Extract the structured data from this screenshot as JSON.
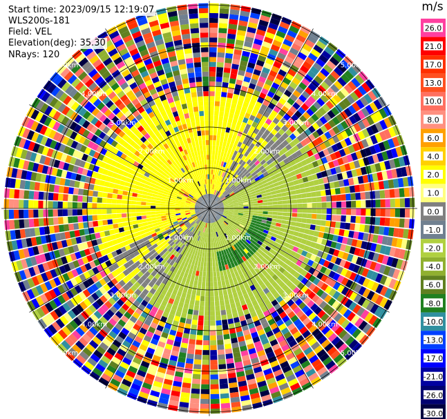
{
  "header": {
    "start_time": "Start time: 2023/09/15 12:19:07",
    "site": "WLS200s-181",
    "field": "Field: VEL",
    "elevation": "Elevation(deg): 35.30",
    "nrays": "NRays: 120"
  },
  "colorbar": {
    "unit": "m/s",
    "ticks": [
      "26.0",
      "21.0",
      "17.0",
      "13.0",
      "10.0",
      "8.0",
      "6.0",
      "4.0",
      "2.0",
      "1.0",
      "0.0",
      "-1.0",
      "-2.0",
      "-4.0",
      "-6.0",
      "-8.0",
      "-10.0",
      "-13.0",
      "-17.0",
      "-21.0",
      "-26.0",
      "-30.0"
    ],
    "colors": [
      "#ff40a0",
      "#ff0000",
      "#ff3000",
      "#ff5020",
      "#ff7060",
      "#ff9080",
      "#ffa000",
      "#ffd000",
      "#ffff00",
      "#ffff80",
      "#808080",
      "#708090",
      "#b0d040",
      "#90b030",
      "#608020",
      "#208020",
      "#3090a0",
      "#0040ff",
      "#0000ff",
      "#0000a0",
      "#000070",
      "#000040"
    ]
  },
  "chart_data": {
    "type": "ppi",
    "field": "VEL",
    "units": "m/s",
    "n_rays": 120,
    "elevation_deg": 35.3,
    "range_rings": [
      "1.00km",
      "2.00km",
      "3.00km",
      "4.00km",
      "5.00km"
    ],
    "rings_km": [
      1,
      2,
      3,
      4,
      5
    ],
    "spoke_angles_deg": [
      0,
      30,
      60,
      90,
      120,
      150,
      180,
      210,
      240,
      270,
      300,
      330
    ],
    "max_range_km": 5.1,
    "coherent_range_km": 2.7,
    "regions": [
      {
        "description": "north/west sector",
        "velocity_ms": 2.0
      },
      {
        "description": "east and southeast sector",
        "velocity_ms": -2.0
      },
      {
        "description": "south sector patch",
        "velocity_ms": -6.0
      },
      {
        "description": "near center transition",
        "velocity_ms": 0.0
      }
    ]
  }
}
